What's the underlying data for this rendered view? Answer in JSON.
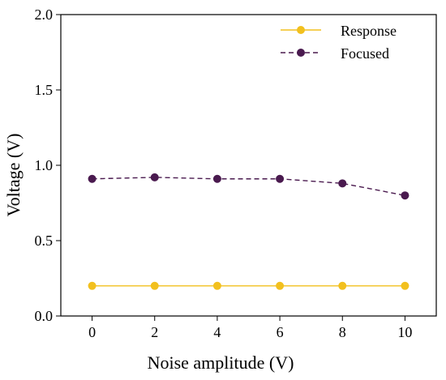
{
  "chart_data": {
    "type": "line",
    "xlabel": "Noise amplitude (V)",
    "ylabel": "Voltage (V)",
    "xlim": [
      -1,
      11
    ],
    "ylim": [
      0.0,
      2.0
    ],
    "x_ticks": [
      0,
      2,
      4,
      6,
      8,
      10
    ],
    "x_tick_labels": [
      "0",
      "2",
      "4",
      "6",
      "8",
      "10"
    ],
    "y_ticks": [
      0.0,
      0.5,
      1.0,
      1.5,
      2.0
    ],
    "y_tick_labels": [
      "0.0",
      "0.5",
      "1.0",
      "1.5",
      "2.0"
    ],
    "grid": false,
    "legend_position": "top-right",
    "x": [
      0,
      2,
      4,
      6,
      8,
      10
    ],
    "series": [
      {
        "name": "Response",
        "values": [
          0.2,
          0.2,
          0.2,
          0.2,
          0.2,
          0.2
        ],
        "color": "#f2c01e",
        "line_style": "solid",
        "marker": "circle"
      },
      {
        "name": "Focused",
        "values": [
          0.91,
          0.92,
          0.91,
          0.91,
          0.88,
          0.8
        ],
        "color": "#4a1a4f",
        "line_style": "dashed",
        "marker": "circle"
      }
    ]
  }
}
